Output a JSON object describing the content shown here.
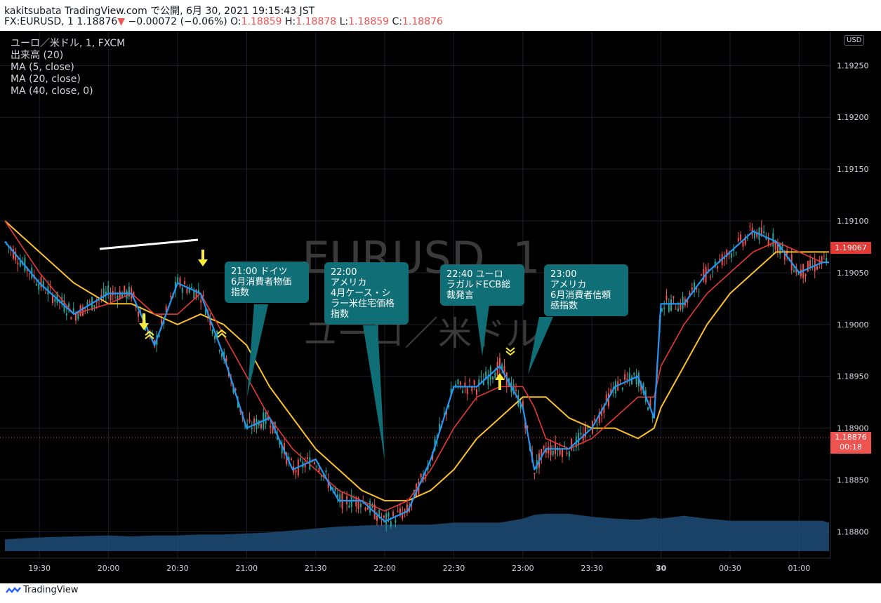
{
  "header": {
    "line1": "kakitsubata TradingView.com で公開, 6月 30, 2021 19:15:43 JST",
    "symbol": "FX:EURUSD, 1",
    "last": "1.18876",
    "arrow": "▼",
    "change": "−0.00072 (−0.06%)",
    "o_label": "O:",
    "o_value": "1.18859",
    "h_label": "H:",
    "h_value": "1.18878",
    "l_label": "L:",
    "l_value": "1.18859",
    "c_label": "C:",
    "c_value": "1.18876"
  },
  "legend": {
    "series_title": "ユーロ／米ドル, 1, FXCM",
    "volume": "出来高 (20)",
    "ma5": "MA (5, close)",
    "ma20": "MA (20, close)",
    "ma40": "MA (40, close, 0)"
  },
  "currency": "USD",
  "watermark": {
    "line1": "EURUSD, 1",
    "line2": "ユーロ／米ドル"
  },
  "callouts": [
    {
      "lines": [
        "21:00 ドイツ",
        "6月消費者物価",
        "指数"
      ]
    },
    {
      "lines": [
        "22:00",
        "アメリカ",
        "4月ケース・シ",
        "ラー米住宅価格",
        "指数"
      ]
    },
    {
      "lines": [
        "22:40 ユーロ",
        "ラガルドECB総",
        "裁発言"
      ]
    },
    {
      "lines": [
        "23:00",
        "アメリカ",
        "6月消費者信頼",
        "感指数"
      ]
    }
  ],
  "price_labels": {
    "ma_last": "1.19067",
    "current": "1.18876",
    "countdown": "00:18"
  },
  "footer": {
    "brand": "TradingView"
  },
  "colors": {
    "background": "#000000",
    "up": "#26a69a",
    "down": "#ef5350",
    "ma5": "#2196f3",
    "ma20": "#e53935",
    "ma40": "#fbc02d",
    "volume": "#1e4e79",
    "callout": "#0f6e76",
    "marker": "#ffeb3b"
  },
  "chart_data": {
    "type": "line",
    "title": "ユーロ／米ドル, 1, FXCM",
    "y_ticks": [
      "1.19250",
      "1.19200",
      "1.19150",
      "1.19100",
      "1.19050",
      "1.19000",
      "1.18950",
      "1.18900",
      "1.18850",
      "1.18800"
    ],
    "x_ticks": [
      "19:30",
      "20:00",
      "20:30",
      "21:00",
      "21:30",
      "22:00",
      "22:30",
      "23:00",
      "23:30",
      "30",
      "00:30",
      "01:00"
    ],
    "ylim": [
      1.1878,
      1.1928
    ],
    "x_range": [
      "19:15",
      "01:13"
    ],
    "x": [
      "19:15",
      "19:30",
      "19:45",
      "20:00",
      "20:10",
      "20:20",
      "20:30",
      "20:40",
      "20:50",
      "21:00",
      "21:10",
      "21:20",
      "21:30",
      "21:40",
      "21:50",
      "22:00",
      "22:10",
      "22:20",
      "22:30",
      "22:40",
      "22:50",
      "23:00",
      "23:05",
      "23:10",
      "23:20",
      "23:30",
      "23:40",
      "23:50",
      "23:57",
      "00:00",
      "00:10",
      "00:20",
      "00:30",
      "00:40",
      "00:50",
      "01:00",
      "01:10",
      "01:13"
    ],
    "series": [
      {
        "name": "MA (5, close)",
        "values": [
          1.1908,
          1.1904,
          1.1901,
          1.1903,
          1.1903,
          1.1898,
          1.1904,
          1.1903,
          1.1897,
          1.189,
          1.1891,
          1.1886,
          1.1887,
          1.1883,
          1.1883,
          1.1881,
          1.1882,
          1.1887,
          1.1894,
          1.1894,
          1.1896,
          1.1892,
          1.1886,
          1.1888,
          1.1888,
          1.189,
          1.1894,
          1.1895,
          1.1891,
          1.1902,
          1.1902,
          1.1905,
          1.1907,
          1.1909,
          1.1908,
          1.1905,
          1.1906,
          1.1906
        ]
      },
      {
        "name": "MA (20, close)",
        "values": [
          1.191,
          1.1905,
          1.1901,
          1.1902,
          1.1903,
          1.1901,
          1.1901,
          1.1903,
          1.1899,
          1.1895,
          1.1891,
          1.1888,
          1.1886,
          1.1884,
          1.1883,
          1.1882,
          1.1883,
          1.1886,
          1.189,
          1.1893,
          1.1894,
          1.1894,
          1.1892,
          1.1889,
          1.1888,
          1.1889,
          1.1891,
          1.1893,
          1.1893,
          1.1896,
          1.19,
          1.1903,
          1.1905,
          1.1907,
          1.1908,
          1.1907,
          1.1906,
          1.1906
        ]
      },
      {
        "name": "MA (40, close, 0)",
        "values": [
          1.191,
          1.1907,
          1.1904,
          1.1902,
          1.1902,
          1.1901,
          1.19,
          1.1901,
          1.19,
          1.1898,
          1.1894,
          1.1891,
          1.1888,
          1.1886,
          1.1884,
          1.1883,
          1.1883,
          1.1884,
          1.1886,
          1.1889,
          1.1891,
          1.1893,
          1.1893,
          1.1893,
          1.1891,
          1.189,
          1.189,
          1.1889,
          1.189,
          1.1892,
          1.1896,
          1.19,
          1.1903,
          1.1905,
          1.1907,
          1.1907,
          1.1907,
          1.1907
        ]
      },
      {
        "name": "出来高 (20)",
        "values": [
          12,
          14,
          15,
          16,
          15,
          16,
          16,
          17,
          17,
          18,
          19,
          21,
          23,
          25,
          26,
          27,
          27,
          27,
          29,
          29,
          29,
          33,
          37,
          38,
          38,
          35,
          33,
          32,
          34,
          33,
          36,
          33,
          31,
          31,
          31,
          31,
          31,
          29
        ]
      }
    ]
  }
}
